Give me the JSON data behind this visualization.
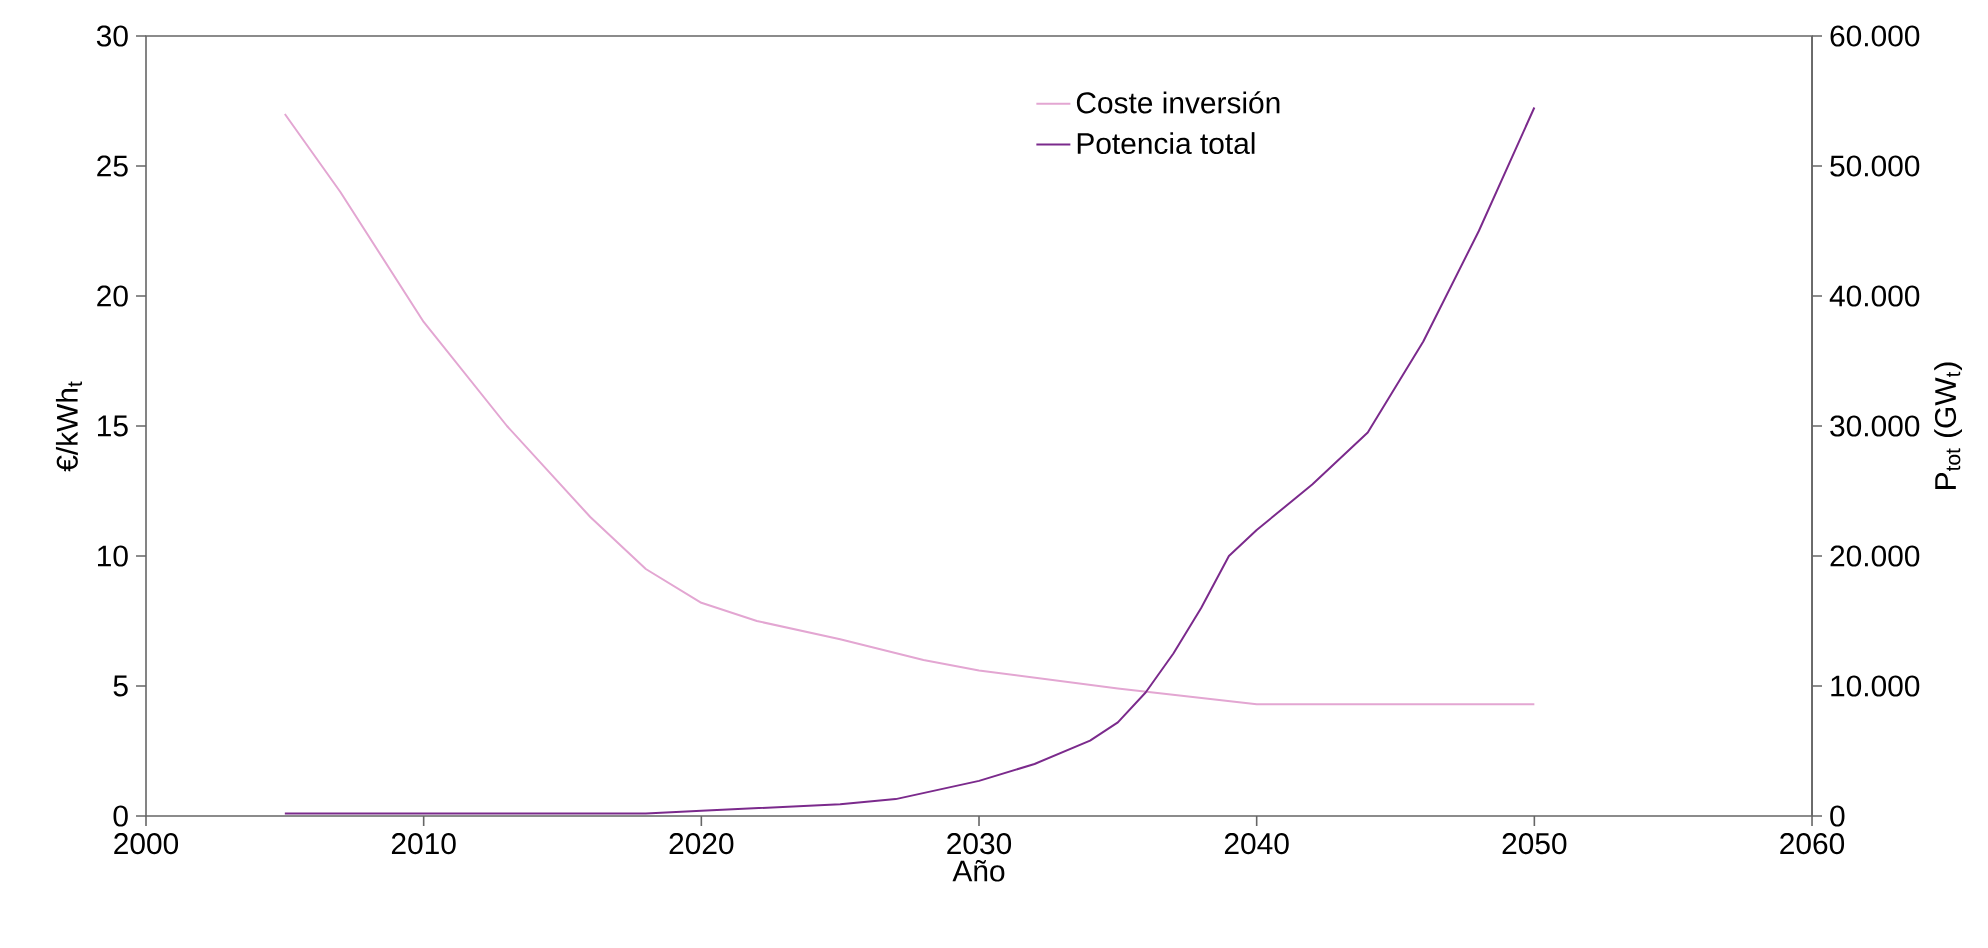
{
  "chart_data": {
    "type": "line",
    "xlabel": "Año",
    "ylabel": "€/kWh$_{t}$",
    "y2label": "P$_{tot}$ (GW$_{t}$)",
    "xlim": [
      2000,
      2060
    ],
    "xticks": [
      2000,
      2010,
      2020,
      2030,
      2040,
      2050,
      2060
    ],
    "ylim": [
      0,
      30
    ],
    "yticks": [
      0,
      5,
      10,
      15,
      20,
      25,
      30
    ],
    "y2lim": [
      0,
      60000
    ],
    "y2ticks": [
      0,
      {
        "value": 10000,
        "label": "10.000"
      },
      {
        "value": 20000,
        "label": "20.000"
      },
      {
        "value": 30000,
        "label": "30.000"
      },
      {
        "value": 40000,
        "label": "40.000"
      },
      {
        "value": 50000,
        "label": "50.000"
      },
      {
        "value": 60000,
        "label": "60.000"
      }
    ],
    "legend": "top right",
    "grid": false,
    "marker": "none",
    "line_style": "solid",
    "series": [
      {
        "name": "Coste inversión",
        "color": "#e3a6d2",
        "x": [
          2005,
          2007,
          2010,
          2013,
          2016,
          2018,
          2020,
          2022,
          2025,
          2028,
          2030,
          2035,
          2040,
          2050
        ],
        "values": [
          27,
          24,
          19,
          15,
          11.5,
          9.5,
          8.2,
          7.5,
          6.8,
          6.0,
          5.6,
          4.9,
          4.3,
          4.3
        ]
      },
      {
        "name": "Potencia total",
        "color": "#7b2a8c",
        "axis": "y2",
        "x": [
          2005,
          2018,
          2020,
          2025,
          2027,
          2030,
          2032,
          2034,
          2035,
          2036,
          2037,
          2038,
          2039,
          2040,
          2042,
          2044,
          2046,
          2048,
          2050
        ],
        "values": [
          200,
          200,
          400,
          900,
          1300,
          2700,
          4000,
          5800,
          7200,
          9500,
          12500,
          16000,
          20000,
          22000,
          25500,
          29500,
          36500,
          45000,
          54500
        ]
      }
    ]
  }
}
